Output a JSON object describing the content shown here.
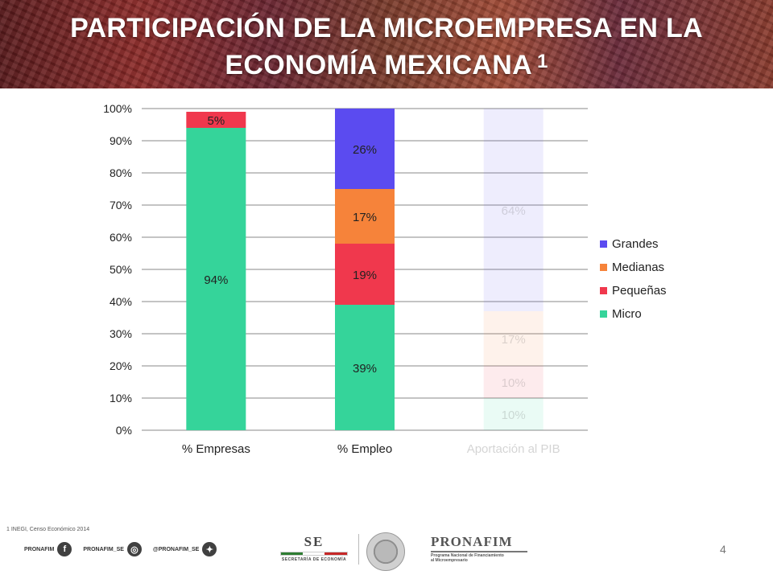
{
  "slide": {
    "title_line1": "PARTICIPACIÓN DE LA MICROEMPRESA EN LA",
    "title_line2": "ECONOMÍA MEXICANA",
    "title_sup": "1",
    "footnote": "1 INEGI, Censo Económico 2014",
    "page_number": "4"
  },
  "footer": {
    "social1": "PRONAFIM",
    "social2": "PRONAFIM_SE",
    "social3": "@PRONAFIM_SE",
    "se_logo": "SE",
    "se_sub": "SECRETARÍA DE ECONOMÍA",
    "pronafim_logo": "PRONAFIM",
    "pronafim_sub1": "Programa Nacional de Financiamiento",
    "pronafim_sub2": "al Microempresario"
  },
  "chart_data": {
    "type": "bar",
    "stacked": true,
    "percent_stacked": true,
    "categories": [
      "% Empresas",
      "% Empleo",
      "Aportación al PIB"
    ],
    "faded_categories": [
      "Aportación al PIB"
    ],
    "series": [
      {
        "name": "Micro",
        "color": "#35d49a",
        "values": [
          94,
          39,
          10
        ],
        "labels": [
          "94%",
          "39%",
          "10%"
        ]
      },
      {
        "name": "Pequeñas",
        "color": "#f0384d",
        "values": [
          5,
          19,
          10
        ],
        "labels": [
          "5%",
          "19%",
          "10%"
        ]
      },
      {
        "name": "Medianas",
        "color": "#f6833a",
        "values": [
          0,
          17,
          17
        ],
        "labels": [
          "",
          "17%",
          "17%"
        ]
      },
      {
        "name": "Grandes",
        "color": "#5b4bf0",
        "values": [
          0,
          26,
          64
        ],
        "labels": [
          "",
          "26%",
          "64%"
        ]
      }
    ],
    "legend_order": [
      "Grandes",
      "Medianas",
      "Pequeñas",
      "Micro"
    ],
    "legend_position": "right",
    "y_ticks": [
      "0%",
      "10%",
      "20%",
      "30%",
      "40%",
      "50%",
      "60%",
      "70%",
      "80%",
      "90%",
      "100%"
    ],
    "ylim": [
      0,
      100
    ],
    "grid": true
  }
}
